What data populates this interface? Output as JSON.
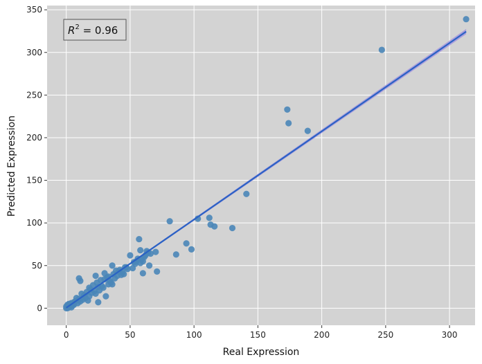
{
  "chart_data": {
    "type": "scatter",
    "title": "",
    "xlabel": "Real Expression",
    "ylabel": "Predicted Expression",
    "xlim": [
      -15,
      320
    ],
    "ylim": [
      -20,
      355
    ],
    "xticks": [
      0,
      50,
      100,
      150,
      200,
      250,
      300
    ],
    "yticks": [
      0,
      50,
      100,
      150,
      200,
      250,
      300,
      350
    ],
    "grid": true,
    "annotation": {
      "prefix": "R",
      "superscript": "2",
      "value": " = 0.96",
      "placement": "top-left"
    },
    "regression": {
      "slope": 1.035,
      "intercept": 0.5,
      "x_range": [
        0,
        313
      ]
    },
    "colors": {
      "background": "#d3d3d3",
      "grid": "#ffffff",
      "points": "#4a86b8",
      "regression_line": "#2a62c4",
      "confidence_band": "#9e8ee0"
    },
    "points": [
      [
        313,
        339
      ],
      [
        247,
        303
      ],
      [
        173,
        233
      ],
      [
        174,
        217
      ],
      [
        189,
        208
      ],
      [
        141,
        134
      ],
      [
        103,
        105
      ],
      [
        112,
        106
      ],
      [
        113,
        98
      ],
      [
        116,
        96
      ],
      [
        130,
        94
      ],
      [
        81,
        102
      ],
      [
        94,
        76
      ],
      [
        98,
        69
      ],
      [
        86,
        63
      ],
      [
        71,
        43
      ],
      [
        60,
        41
      ],
      [
        65,
        50
      ],
      [
        70,
        66
      ],
      [
        57,
        81
      ],
      [
        58,
        68
      ],
      [
        50,
        62
      ],
      [
        36,
        50
      ],
      [
        47,
        48
      ],
      [
        45,
        40
      ],
      [
        10,
        35
      ],
      [
        11,
        32
      ],
      [
        23,
        38
      ],
      [
        30,
        41
      ],
      [
        31,
        14
      ],
      [
        62,
        62
      ],
      [
        64,
        65
      ],
      [
        55,
        55
      ],
      [
        52,
        47
      ],
      [
        40,
        38
      ],
      [
        38,
        35
      ],
      [
        35,
        30
      ],
      [
        33,
        28
      ],
      [
        28,
        26
      ],
      [
        25,
        25
      ],
      [
        22,
        20
      ],
      [
        20,
        18
      ],
      [
        18,
        14
      ],
      [
        15,
        12
      ],
      [
        13,
        10
      ],
      [
        12,
        17
      ],
      [
        17,
        9
      ],
      [
        25,
        7
      ],
      [
        8,
        12
      ],
      [
        6,
        4
      ],
      [
        5,
        3
      ],
      [
        4,
        6
      ],
      [
        3,
        2
      ],
      [
        2,
        1
      ],
      [
        1,
        2
      ],
      [
        0,
        0
      ],
      [
        1,
        0
      ],
      [
        2,
        3
      ],
      [
        3,
        5
      ],
      [
        7,
        8
      ],
      [
        9,
        6
      ],
      [
        14,
        15
      ],
      [
        19,
        22
      ],
      [
        21,
        27
      ],
      [
        24,
        30
      ],
      [
        27,
        33
      ],
      [
        29,
        24
      ],
      [
        32,
        36
      ],
      [
        34,
        32
      ],
      [
        37,
        40
      ],
      [
        39,
        44
      ],
      [
        42,
        45
      ],
      [
        44,
        42
      ],
      [
        46,
        48
      ],
      [
        48,
        46
      ],
      [
        53,
        54
      ],
      [
        56,
        58
      ],
      [
        59,
        57
      ],
      [
        61,
        60
      ],
      [
        63,
        67
      ],
      [
        66,
        64
      ],
      [
        16,
        19
      ],
      [
        11,
        8
      ],
      [
        26,
        21
      ],
      [
        30,
        34
      ],
      [
        43,
        39
      ],
      [
        54,
        52
      ],
      [
        58,
        53
      ],
      [
        60,
        55
      ],
      [
        18,
        24
      ],
      [
        23,
        17
      ],
      [
        33,
        37
      ],
      [
        36,
        28
      ],
      [
        41,
        43
      ],
      [
        4,
        1
      ],
      [
        2,
        5
      ],
      [
        6,
        7
      ],
      [
        10,
        11
      ],
      [
        1,
        4
      ],
      [
        0,
        2
      ]
    ]
  }
}
